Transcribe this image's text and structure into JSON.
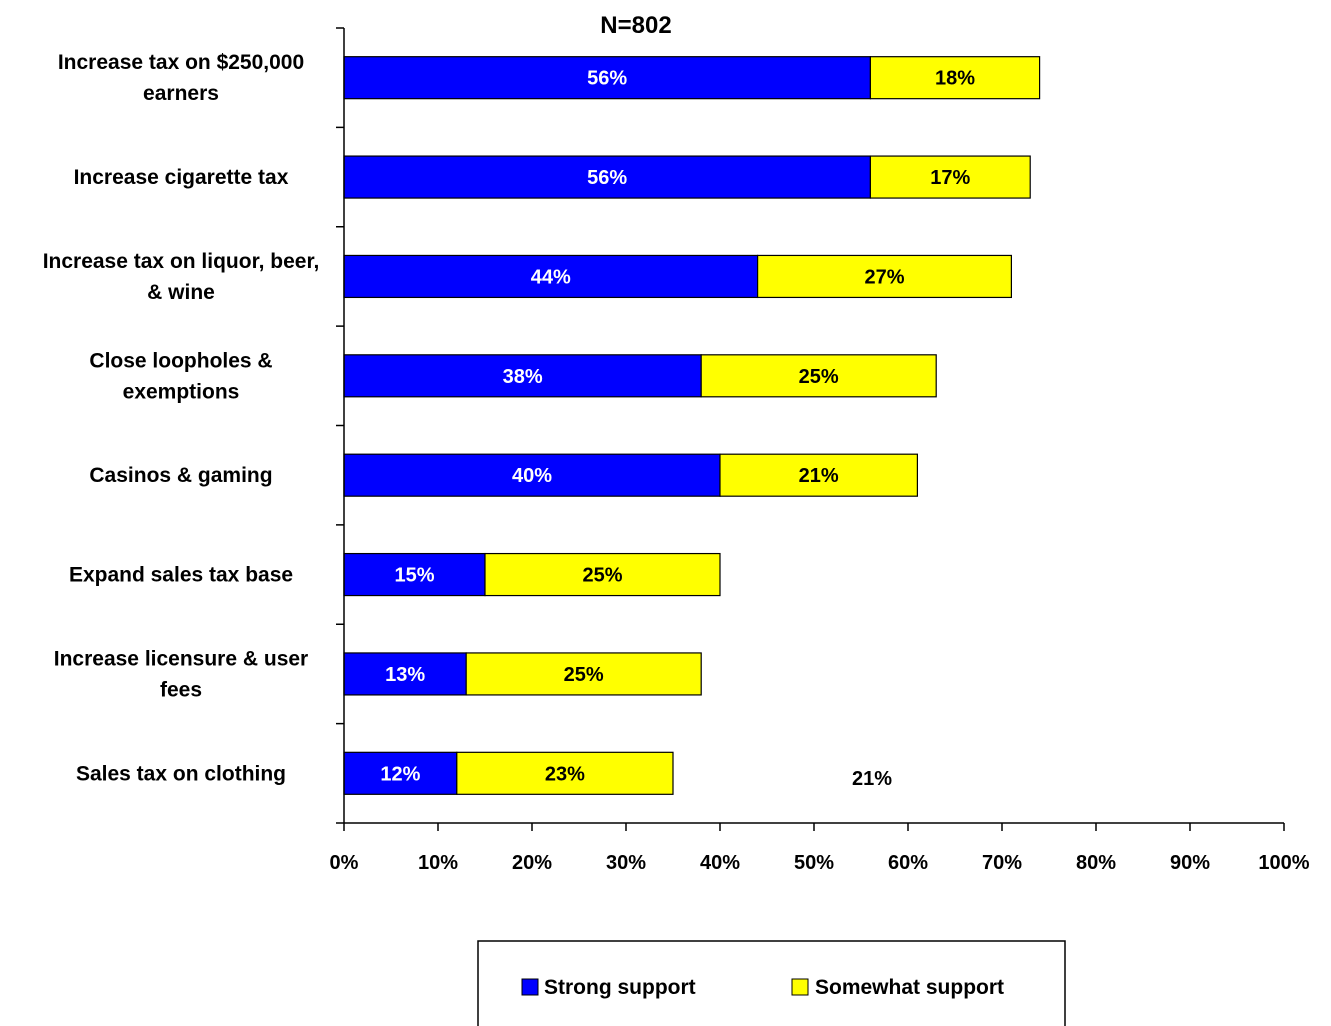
{
  "chart_data": {
    "type": "bar",
    "orientation": "horizontal",
    "stacked": true,
    "title": "N=802",
    "categories": [
      [
        "Increase tax on $250,000",
        "earners"
      ],
      [
        "Increase cigarette tax"
      ],
      [
        "Increase tax on liquor, beer,",
        "& wine"
      ],
      [
        "Close loopholes &",
        "exemptions"
      ],
      [
        "Casinos & gaming"
      ],
      [
        "Expand sales tax base"
      ],
      [
        "Increase licensure & user",
        "fees"
      ],
      [
        "Sales tax on clothing"
      ]
    ],
    "series": [
      {
        "name": "Strong support",
        "color": "#0000FF",
        "label_color": "#FFFFFF",
        "values": [
          56,
          56,
          44,
          38,
          40,
          15,
          13,
          12
        ]
      },
      {
        "name": "Somewhat support",
        "color": "#FFFF00",
        "label_color": "#000000",
        "values": [
          18,
          17,
          27,
          25,
          21,
          25,
          25,
          23
        ]
      }
    ],
    "xlim": [
      0,
      100
    ],
    "xticks": [
      "0%",
      "10%",
      "20%",
      "30%",
      "40%",
      "50%",
      "60%",
      "70%",
      "80%",
      "90%",
      "100%"
    ],
    "value_suffix": "%",
    "annotation": "21%",
    "legend_position": "bottom",
    "grid": false
  }
}
